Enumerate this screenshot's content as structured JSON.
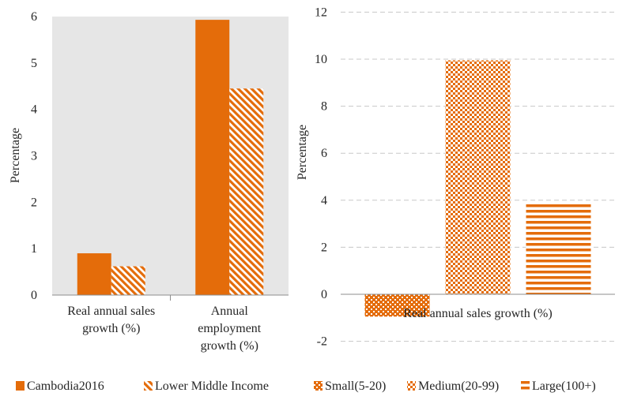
{
  "chart_data": [
    {
      "type": "bar",
      "categories": [
        [
          "Real annual sales",
          "growth (%)"
        ],
        [
          "Annual",
          "employment",
          "growth (%)"
        ]
      ],
      "series": [
        {
          "name": "Cambodia2016",
          "values": [
            0.9,
            5.93
          ],
          "pattern": "solid"
        },
        {
          "name": "Lower Middle Income",
          "values": [
            0.62,
            4.45
          ],
          "pattern": "diagonal"
        }
      ],
      "ylabel": "Percentage",
      "ylim": [
        0,
        6
      ],
      "yticks": [
        0,
        1,
        2,
        3,
        4,
        5,
        6
      ],
      "grid": false,
      "background": "#e6e6e6",
      "legend_position": "bottom"
    },
    {
      "type": "bar",
      "categories": [
        [
          "Real annual sales growth (%)"
        ]
      ],
      "series": [
        {
          "name": "Small(5-20)",
          "values": [
            -0.95
          ],
          "pattern": "dots"
        },
        {
          "name": "Medium(20-99)",
          "values": [
            9.95
          ],
          "pattern": "checker"
        },
        {
          "name": "Large(100+)",
          "values": [
            3.9
          ],
          "pattern": "horizontal"
        }
      ],
      "ylabel": "Percentage",
      "ylim": [
        -2,
        12
      ],
      "yticks": [
        -2,
        0,
        2,
        4,
        6,
        8,
        10,
        12
      ],
      "grid": true,
      "legend_position": "bottom"
    }
  ],
  "colors": {
    "bar": "#e46c0a",
    "plot_bg": "#e6e6e6",
    "grid": "#c8c8c8",
    "axis": "#8c8c8c"
  }
}
